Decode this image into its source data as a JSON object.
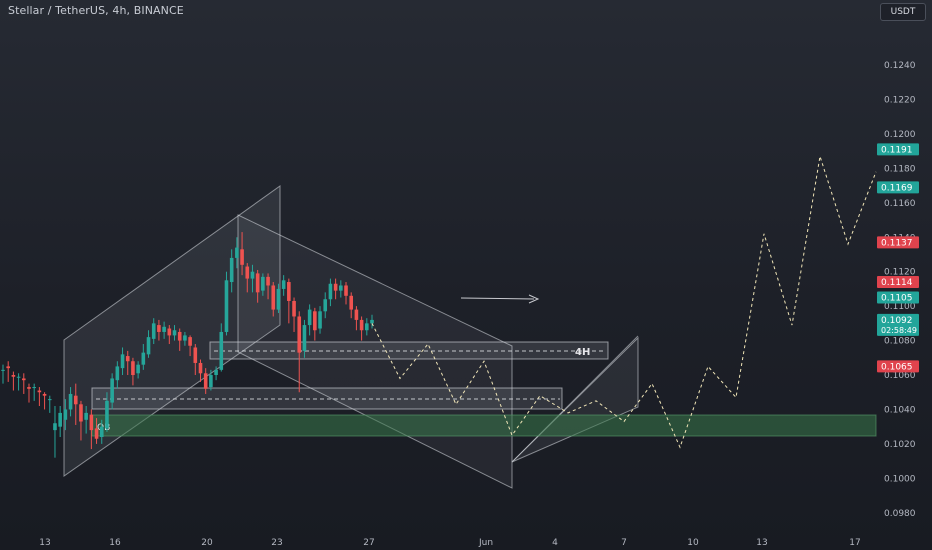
{
  "header": {
    "title": "Stellar / TetherUS, 4h, BINANCE",
    "currency": "USDT"
  },
  "chart_data": {
    "type": "candlestick",
    "symbol": "Stellar / TetherUS",
    "interval": "4h",
    "exchange": "BINANCE",
    "ylim": [
      0.097,
      0.1265
    ],
    "y_ticks": [
      "0.1240",
      "0.1220",
      "0.1200",
      "0.1180",
      "0.1160",
      "0.1140",
      "0.1120",
      "0.1100",
      "0.1080",
      "0.1060",
      "0.1040",
      "0.1020",
      "0.1000",
      "0.0980"
    ],
    "x_ticks": [
      "13",
      "16",
      "20",
      "23",
      "27",
      "Jun",
      "4",
      "7",
      "10",
      "13",
      "17"
    ],
    "price_labels": [
      {
        "value": "0.1191",
        "num": 0.1191,
        "color": "#22a59a"
      },
      {
        "value": "0.1169",
        "num": 0.1169,
        "color": "#22a59a"
      },
      {
        "value": "0.1137",
        "num": 0.1137,
        "color": "#e0434d"
      },
      {
        "value": "0.1114",
        "num": 0.1114,
        "color": "#e0434d"
      },
      {
        "value": "0.1105",
        "num": 0.1105,
        "color": "#22a59a"
      },
      {
        "value": "0.1092",
        "num": 0.1092,
        "color": "#22a59a",
        "sub": "02:58:49"
      },
      {
        "value": "0.1065",
        "num": 0.1065,
        "color": "#e0434d"
      }
    ],
    "annotations": {
      "zone_4h_label": "4H",
      "zone_ob_label": "OB"
    },
    "projection_path": [
      0.109,
      0.1058,
      0.1078,
      0.1043,
      0.1068,
      0.1025,
      0.1048,
      0.1038,
      0.1045,
      0.1033,
      0.1055,
      0.1018,
      0.1065,
      0.1047,
      0.1142,
      0.1089,
      0.1187,
      0.1136,
      0.1178
    ],
    "candles": [
      [
        0.1063,
        0.1063,
        0.1055,
        0.1066
      ],
      [
        0.1065,
        0.1064,
        0.1056,
        0.1068
      ],
      [
        0.106,
        0.1059,
        0.1051,
        0.1062
      ],
      [
        0.1059,
        0.1059,
        0.1051,
        0.1061
      ],
      [
        0.1058,
        0.1057,
        0.1049,
        0.1061
      ],
      [
        0.1053,
        0.1052,
        0.1044,
        0.1055
      ],
      [
        0.1053,
        0.1053,
        0.1045,
        0.1055
      ],
      [
        0.1051,
        0.105,
        0.1042,
        0.1053
      ],
      [
        0.1049,
        0.1048,
        0.104,
        0.105
      ],
      [
        0.1046,
        0.1046,
        0.1038,
        0.1048
      ],
      [
        0.1028,
        0.1032,
        0.1012,
        0.1042
      ],
      [
        0.103,
        0.1038,
        0.1024,
        0.1042
      ],
      [
        0.1034,
        0.104,
        0.1028,
        0.1046
      ],
      [
        0.104,
        0.1049,
        0.1036,
        0.1053
      ],
      [
        0.1048,
        0.1043,
        0.1031,
        0.1055
      ],
      [
        0.1043,
        0.1033,
        0.1022,
        0.1045
      ],
      [
        0.1034,
        0.1038,
        0.1026,
        0.1042
      ],
      [
        0.1037,
        0.1028,
        0.1017,
        0.104
      ],
      [
        0.1029,
        0.1023,
        0.102,
        0.1035
      ],
      [
        0.1024,
        0.103,
        0.102,
        0.1034
      ],
      [
        0.1029,
        0.1045,
        0.1027,
        0.105
      ],
      [
        0.1044,
        0.1058,
        0.104,
        0.1061
      ],
      [
        0.1057,
        0.1065,
        0.1052,
        0.1068
      ],
      [
        0.1064,
        0.1072,
        0.106,
        0.1076
      ],
      [
        0.1071,
        0.1068,
        0.106,
        0.1074
      ],
      [
        0.1068,
        0.106,
        0.1054,
        0.107
      ],
      [
        0.1061,
        0.1066,
        0.1058,
        0.1068
      ],
      [
        0.1066,
        0.1073,
        0.1063,
        0.1078
      ],
      [
        0.1072,
        0.1082,
        0.107,
        0.1086
      ],
      [
        0.1081,
        0.109,
        0.1078,
        0.1093
      ],
      [
        0.1089,
        0.1085,
        0.108,
        0.1092
      ],
      [
        0.1085,
        0.1088,
        0.1081,
        0.1091
      ],
      [
        0.1087,
        0.1083,
        0.1078,
        0.1089
      ],
      [
        0.1083,
        0.1086,
        0.108,
        0.1089
      ],
      [
        0.1085,
        0.108,
        0.1074,
        0.1087
      ],
      [
        0.108,
        0.1083,
        0.1077,
        0.1085
      ],
      [
        0.1082,
        0.1077,
        0.1071,
        0.1083
      ],
      [
        0.1076,
        0.1067,
        0.106,
        0.1078
      ],
      [
        0.1067,
        0.1061,
        0.1056,
        0.1069
      ],
      [
        0.1061,
        0.1052,
        0.1049,
        0.1064
      ],
      [
        0.1053,
        0.106,
        0.1051,
        0.1063
      ],
      [
        0.106,
        0.1063,
        0.1057,
        0.1065
      ],
      [
        0.1063,
        0.1085,
        0.1062,
        0.109
      ],
      [
        0.1085,
        0.1115,
        0.1083,
        0.112
      ],
      [
        0.1114,
        0.1128,
        0.1108,
        0.1133
      ],
      [
        0.1128,
        0.1134,
        0.1122,
        0.114
      ],
      [
        0.1133,
        0.1124,
        0.1118,
        0.1143
      ],
      [
        0.1123,
        0.1116,
        0.1108,
        0.1125
      ],
      [
        0.1116,
        0.112,
        0.1108,
        0.1124
      ],
      [
        0.1119,
        0.1108,
        0.1102,
        0.1121
      ],
      [
        0.1109,
        0.1117,
        0.1106,
        0.1119
      ],
      [
        0.1117,
        0.1112,
        0.1104,
        0.1119
      ],
      [
        0.1112,
        0.1098,
        0.1094,
        0.1114
      ],
      [
        0.1098,
        0.111,
        0.1096,
        0.1113
      ],
      [
        0.111,
        0.1115,
        0.1106,
        0.1118
      ],
      [
        0.1114,
        0.1103,
        0.109,
        0.1116
      ],
      [
        0.1103,
        0.1094,
        0.1085,
        0.1105
      ],
      [
        0.1094,
        0.1073,
        0.105,
        0.1097
      ],
      [
        0.1074,
        0.1089,
        0.107,
        0.1092
      ],
      [
        0.1089,
        0.1098,
        0.1083,
        0.1101
      ],
      [
        0.1097,
        0.1086,
        0.108,
        0.1099
      ],
      [
        0.1087,
        0.1097,
        0.1084,
        0.11
      ],
      [
        0.1097,
        0.1104,
        0.1093,
        0.1108
      ],
      [
        0.1104,
        0.1113,
        0.11,
        0.1116
      ],
      [
        0.1113,
        0.1109,
        0.1104,
        0.1116
      ],
      [
        0.1109,
        0.1112,
        0.1105,
        0.1115
      ],
      [
        0.1112,
        0.1106,
        0.1101,
        0.1114
      ],
      [
        0.1106,
        0.1098,
        0.1093,
        0.1108
      ],
      [
        0.1098,
        0.1092,
        0.1086,
        0.11
      ],
      [
        0.1092,
        0.1086,
        0.108,
        0.1094
      ],
      [
        0.1086,
        0.109,
        0.1083,
        0.1093
      ],
      [
        0.109,
        0.1092,
        0.1087,
        0.1095
      ]
    ]
  }
}
